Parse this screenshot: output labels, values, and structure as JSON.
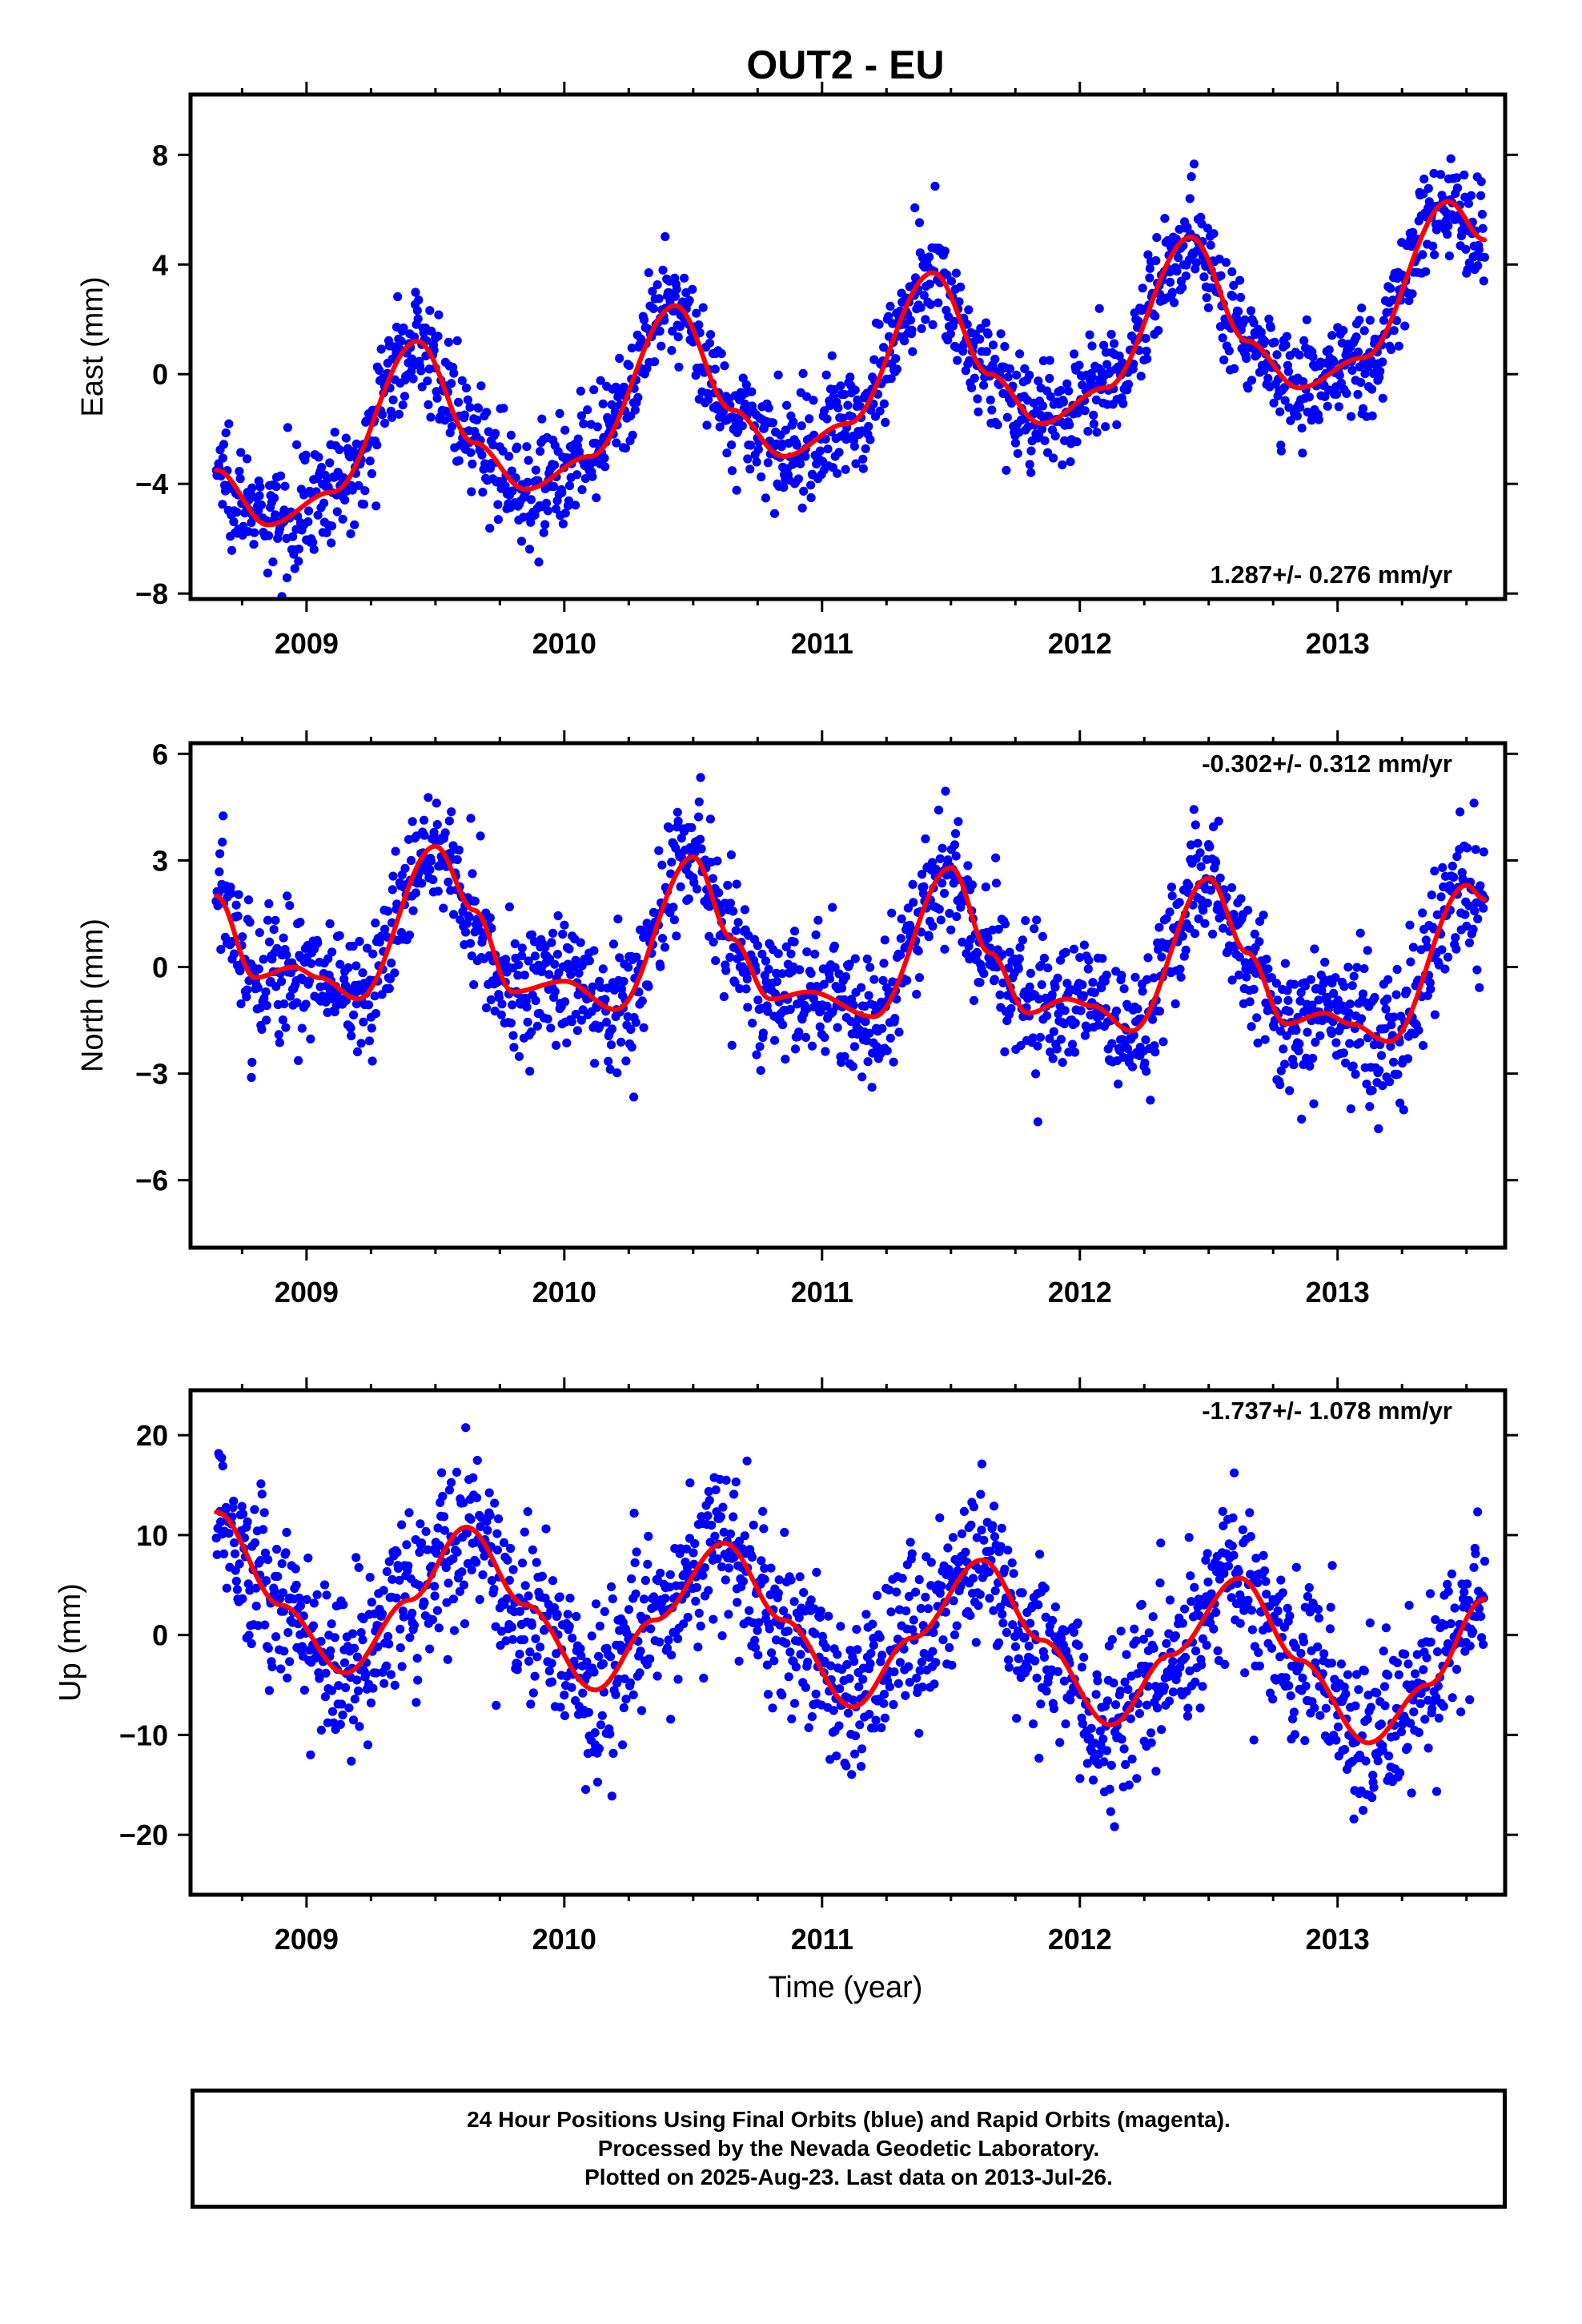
{
  "figure": {
    "title": "OUT2 - EU",
    "xlabel": "Time (year)",
    "accent_colors": {
      "final_orbits": "#0000ff",
      "fit_curve": "#ff0000"
    }
  },
  "footer": {
    "lines": [
      "24 Hour Positions Using Final Orbits (blue) and Rapid Orbits (magenta).",
      "Processed by the Nevada Geodetic Laboratory.",
      "Plotted on 2025-Aug-23. Last data on 2013-Jul-26."
    ]
  },
  "chart_data": [
    {
      "type": "scatter",
      "component": "East",
      "ylabel": "East (mm)",
      "rate_text": "1.287+/- 0.276 mm/yr",
      "rate_position": "bottom-right",
      "xlim": [
        2008.55,
        2013.65
      ],
      "ylim": [
        -8.2,
        10.2
      ],
      "xticks": [
        2009,
        2010,
        2011,
        2012,
        2013
      ],
      "xtick_labels": [
        "2009",
        "2010",
        "2011",
        "2012",
        "2013"
      ],
      "yticks": [
        -8,
        -4,
        0,
        4,
        8
      ],
      "ytick_labels": [
        "−8",
        "−4",
        "0",
        "4",
        "8"
      ],
      "grid": false,
      "series": [
        {
          "kind": "daily_positions_scatter",
          "color": "#0000ff",
          "x_range": [
            2008.65,
            2013.57
          ],
          "approx_points": 1700,
          "trend_curve": {
            "x": [
              2008.65,
              2008.85,
              2009.1,
              2009.43,
              2009.65,
              2009.85,
              2010.1,
              2010.43,
              2010.65,
              2010.85,
              2011.1,
              2011.43,
              2011.65,
              2011.85,
              2012.1,
              2012.43,
              2012.65,
              2012.85,
              2013.1,
              2013.43,
              2013.57
            ],
            "y": [
              -3.5,
              -5.5,
              -4.3,
              1.2,
              -2.5,
              -4.2,
              -3.0,
              2.5,
              -1.3,
              -3.0,
              -1.8,
              3.7,
              0.0,
              -1.8,
              -0.5,
              5.0,
              1.2,
              -0.5,
              0.6,
              6.3,
              4.9
            ]
          },
          "scatter_std": 1.0
        },
        {
          "kind": "seasonal_fit",
          "color": "#ff0000",
          "x": [
            2008.65,
            2008.85,
            2009.1,
            2009.43,
            2009.65,
            2009.85,
            2010.1,
            2010.43,
            2010.65,
            2010.85,
            2011.1,
            2011.43,
            2011.65,
            2011.85,
            2012.1,
            2012.43,
            2012.65,
            2012.85,
            2013.1,
            2013.43,
            2013.57
          ],
          "y": [
            -3.5,
            -5.5,
            -4.3,
            1.2,
            -2.5,
            -4.2,
            -3.0,
            2.5,
            -1.3,
            -3.0,
            -1.8,
            3.7,
            0.0,
            -1.8,
            -0.5,
            5.0,
            1.2,
            -0.5,
            0.6,
            6.3,
            4.9
          ]
        }
      ]
    },
    {
      "type": "scatter",
      "component": "North",
      "ylabel": "North (mm)",
      "rate_text": "-0.302+/- 0.312 mm/yr",
      "rate_position": "top-right",
      "xlim": [
        2008.55,
        2013.65
      ],
      "ylim": [
        -7.9,
        6.3
      ],
      "xticks": [
        2009,
        2010,
        2011,
        2012,
        2013
      ],
      "xtick_labels": [
        "2009",
        "2010",
        "2011",
        "2012",
        "2013"
      ],
      "yticks": [
        -6,
        -3,
        0,
        3,
        6
      ],
      "ytick_labels": [
        "−6",
        "−3",
        "0",
        "3",
        "6"
      ],
      "grid": false,
      "series": [
        {
          "kind": "daily_positions_scatter",
          "color": "#0000ff",
          "x_range": [
            2008.65,
            2013.57
          ],
          "approx_points": 1700,
          "trend_curve": {
            "x": [
              2008.65,
              2008.8,
              2008.95,
              2009.05,
              2009.2,
              2009.5,
              2009.65,
              2009.8,
              2010.0,
              2010.2,
              2010.5,
              2010.65,
              2010.8,
              2010.95,
              2011.2,
              2011.5,
              2011.65,
              2011.8,
              2011.95,
              2012.05,
              2012.2,
              2012.5,
              2012.65,
              2012.8,
              2012.95,
              2013.05,
              2013.2,
              2013.5,
              2013.57
            ],
            "y": [
              2.0,
              -0.3,
              0.0,
              -0.3,
              -0.9,
              3.4,
              1.6,
              -0.7,
              -0.4,
              -1.2,
              3.1,
              0.8,
              -0.9,
              -0.7,
              -1.4,
              2.8,
              0.4,
              -1.3,
              -0.9,
              -1.1,
              -1.8,
              2.5,
              0.4,
              -1.6,
              -1.3,
              -1.6,
              -2.1,
              2.3,
              1.9
            ]
          },
          "scatter_std": 0.95
        },
        {
          "kind": "seasonal_fit",
          "color": "#ff0000",
          "x": [
            2008.65,
            2008.8,
            2008.95,
            2009.05,
            2009.2,
            2009.5,
            2009.65,
            2009.8,
            2010.0,
            2010.2,
            2010.5,
            2010.65,
            2010.8,
            2010.95,
            2011.2,
            2011.5,
            2011.65,
            2011.8,
            2011.95,
            2012.05,
            2012.2,
            2012.5,
            2012.65,
            2012.8,
            2012.95,
            2013.05,
            2013.2,
            2013.5,
            2013.57
          ],
          "y": [
            2.0,
            -0.3,
            0.0,
            -0.3,
            -0.9,
            3.4,
            1.6,
            -0.7,
            -0.4,
            -1.2,
            3.1,
            0.8,
            -0.9,
            -0.7,
            -1.4,
            2.8,
            0.4,
            -1.3,
            -0.9,
            -1.1,
            -1.8,
            2.5,
            0.4,
            -1.6,
            -1.3,
            -1.6,
            -2.1,
            2.3,
            1.9
          ]
        }
      ]
    },
    {
      "type": "scatter",
      "component": "Up",
      "ylabel": "Up (mm)",
      "rate_text": "-1.737+/- 1.078 mm/yr",
      "rate_position": "top-right",
      "xlim": [
        2008.55,
        2013.65
      ],
      "ylim": [
        -26,
        24.5
      ],
      "xticks": [
        2009,
        2010,
        2011,
        2012,
        2013
      ],
      "xtick_labels": [
        "2009",
        "2010",
        "2011",
        "2012",
        "2013"
      ],
      "yticks": [
        -20,
        -10,
        0,
        10,
        20
      ],
      "ytick_labels": [
        "−20",
        "−10",
        "0",
        "10",
        "20"
      ],
      "grid": false,
      "series": [
        {
          "kind": "daily_positions_scatter",
          "color": "#0000ff",
          "x_range": [
            2008.65,
            2013.57
          ],
          "approx_points": 1700,
          "trend_curve": {
            "x": [
              2008.65,
              2008.9,
              2009.15,
              2009.4,
              2009.62,
              2009.85,
              2010.12,
              2010.35,
              2010.62,
              2010.85,
              2011.12,
              2011.35,
              2011.62,
              2011.85,
              2012.12,
              2012.35,
              2012.62,
              2012.85,
              2013.12,
              2013.35,
              2013.57
            ],
            "y": [
              12.3,
              3.0,
              -3.8,
              3.5,
              10.8,
              3.0,
              -5.5,
              1.5,
              9.2,
              1.5,
              -7.2,
              -0.3,
              7.5,
              -0.5,
              -9.0,
              -2.0,
              5.7,
              -2.5,
              -10.8,
              -5.0,
              3.6
            ]
          },
          "scatter_std": 4.2
        },
        {
          "kind": "seasonal_fit",
          "color": "#ff0000",
          "x": [
            2008.65,
            2008.9,
            2009.15,
            2009.4,
            2009.62,
            2009.85,
            2010.12,
            2010.35,
            2010.62,
            2010.85,
            2011.12,
            2011.35,
            2011.62,
            2011.85,
            2012.12,
            2012.35,
            2012.62,
            2012.85,
            2013.12,
            2013.35,
            2013.57
          ],
          "y": [
            12.3,
            3.0,
            -3.8,
            3.5,
            10.8,
            3.0,
            -5.5,
            1.5,
            9.2,
            1.5,
            -7.2,
            -0.3,
            7.5,
            -0.5,
            -9.0,
            -2.0,
            5.7,
            -2.5,
            -10.8,
            -5.0,
            3.6
          ]
        }
      ]
    }
  ]
}
